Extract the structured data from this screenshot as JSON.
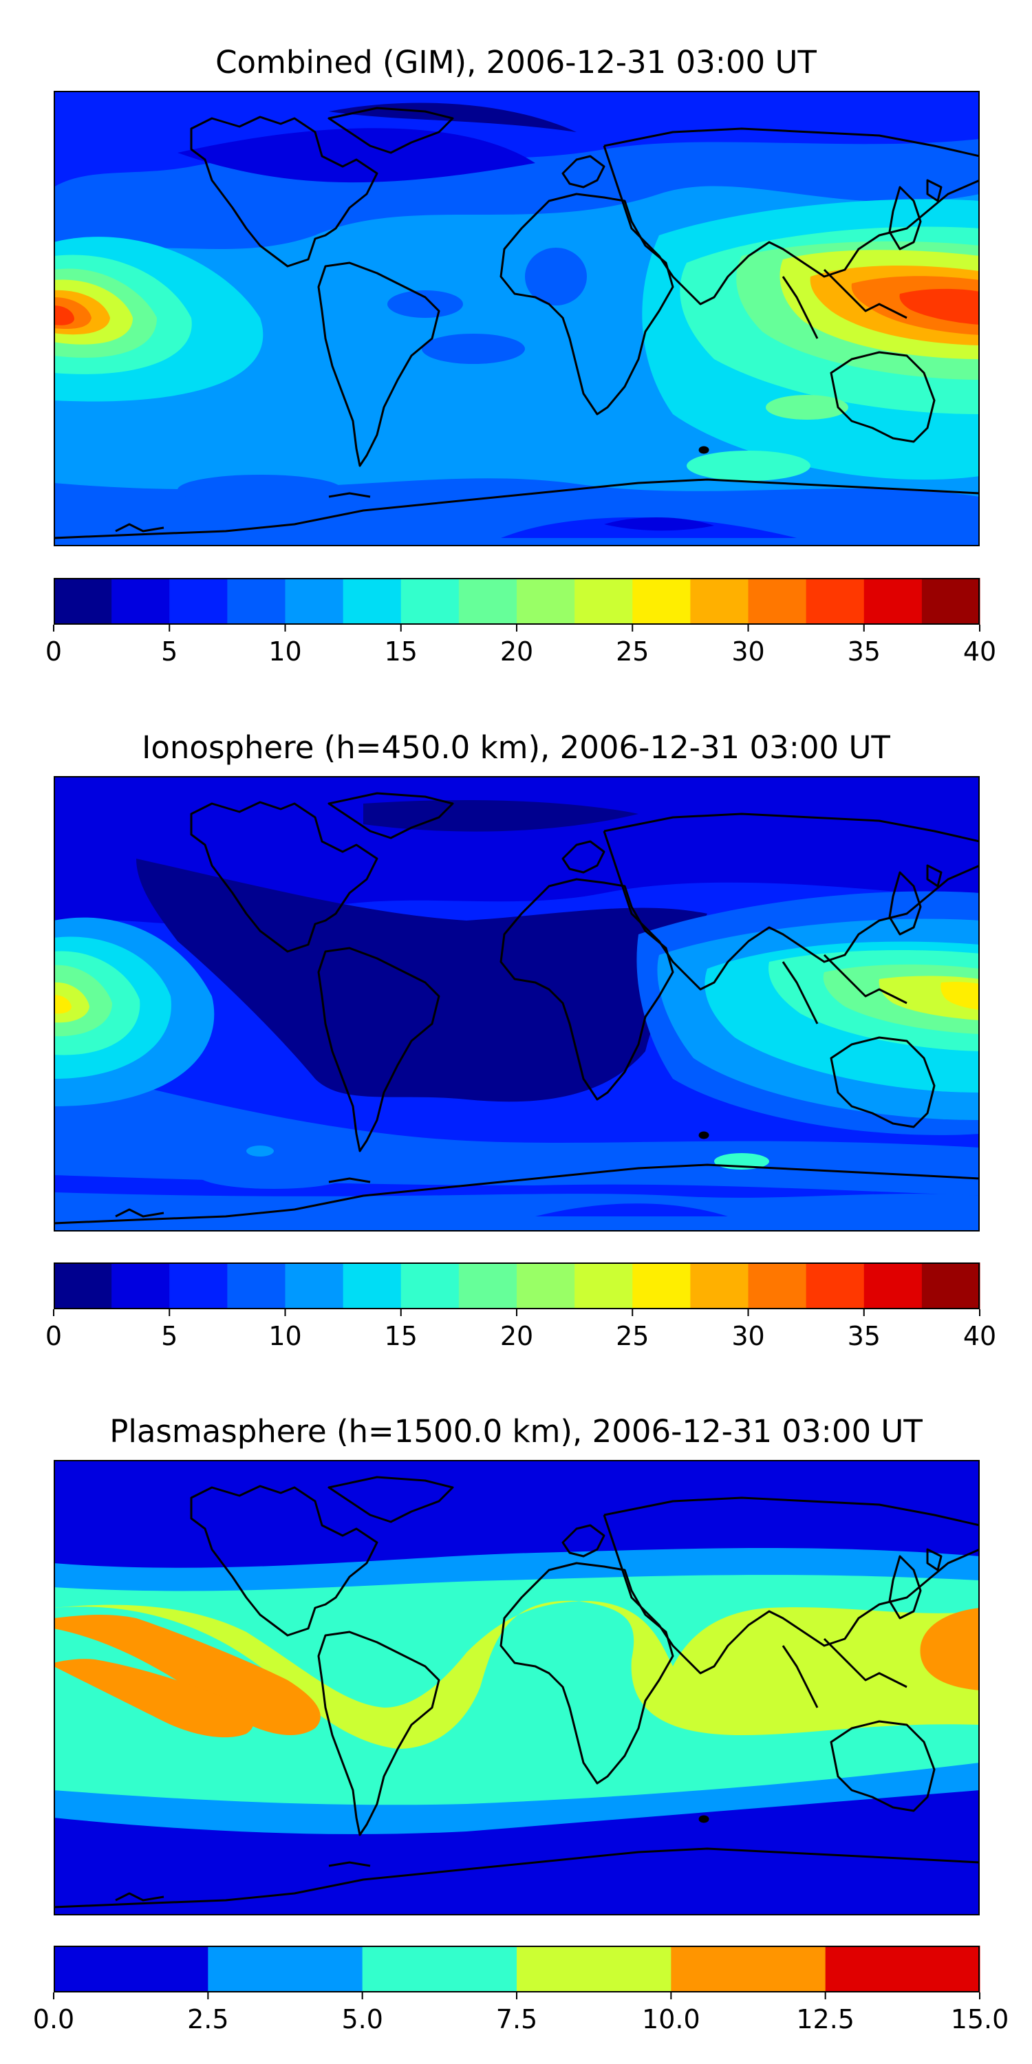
{
  "panels": [
    {
      "title": "Combined (GIM), 2006-12-31 03:00 UT",
      "levels": [
        0,
        2.5,
        5,
        7.5,
        10,
        12.5,
        15,
        17.5,
        20,
        22.5,
        25,
        27.5,
        30,
        32.5,
        35,
        37.5,
        40
      ],
      "colors": [
        "#00008f",
        "#0000e0",
        "#0020ff",
        "#005cff",
        "#0099ff",
        "#00ddf5",
        "#33ffcc",
        "#66ff99",
        "#99ff66",
        "#ccff33",
        "#ffee00",
        "#ffb000",
        "#ff7700",
        "#ff3800",
        "#e00000",
        "#990000"
      ],
      "tick_labels": [
        "0",
        "5",
        "10",
        "15",
        "20",
        "25",
        "30",
        "35",
        "40"
      ]
    },
    {
      "title": "Ionosphere  (h=450.0 km), 2006-12-31 03:00 UT",
      "levels": [
        0,
        2.5,
        5,
        7.5,
        10,
        12.5,
        15,
        17.5,
        20,
        22.5,
        25,
        27.5,
        30,
        32.5,
        35,
        37.5,
        40
      ],
      "colors": [
        "#00008f",
        "#0000e0",
        "#0020ff",
        "#005cff",
        "#0099ff",
        "#00ddf5",
        "#33ffcc",
        "#66ff99",
        "#99ff66",
        "#ccff33",
        "#ffee00",
        "#ffb000",
        "#ff7700",
        "#ff3800",
        "#e00000",
        "#990000"
      ],
      "tick_labels": [
        "0",
        "5",
        "10",
        "15",
        "20",
        "25",
        "30",
        "35",
        "40"
      ]
    },
    {
      "title": "Plasmasphere (h=1500.0 km), 2006-12-31 03:00 UT",
      "levels": [
        0.0,
        2.5,
        5.0,
        7.5,
        10.0,
        12.5,
        15.0
      ],
      "colors": [
        "#0000e0",
        "#0099ff",
        "#33ffcc",
        "#ccff33",
        "#ff9500",
        "#e00000"
      ],
      "tick_labels": [
        "0.0",
        "2.5",
        "5.0",
        "7.5",
        "10.0",
        "12.5",
        "15.0"
      ]
    }
  ]
}
